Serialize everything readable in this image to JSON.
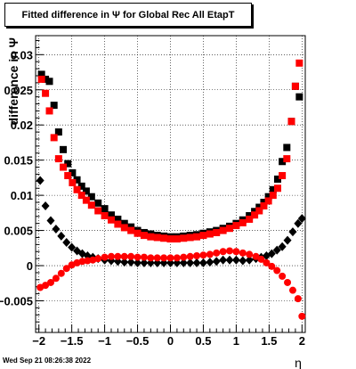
{
  "chart_data": {
    "type": "scatter",
    "title": "Fitted difference in  Ψ  for Global Rec All EtapT",
    "xlabel": "η",
    "ylabel": "difference in Ψ",
    "xlim": [
      -2.05,
      2.05
    ],
    "ylim": [
      -0.0095,
      0.0327
    ],
    "grid": true,
    "legend": "none",
    "x_ticks": [
      -2,
      -1.5,
      -1,
      -0.5,
      0,
      0.5,
      1,
      1.5,
      2
    ],
    "x_tick_labels": [
      "−2",
      "−1.5",
      "−1",
      "−0.5",
      "0",
      "0.5",
      "1",
      "1.5",
      "2"
    ],
    "y_ticks": [
      -0.005,
      0,
      0.005,
      0.01,
      0.015,
      0.02,
      0.025,
      0.03
    ],
    "y_tick_labels": [
      "−0.005",
      "0",
      "0.005",
      "0.01",
      "0.015",
      "0.02",
      "0.025",
      "0.03"
    ],
    "series": [
      {
        "color": "#000000",
        "marker": "square",
        "x": [
          -1.96,
          -1.9,
          -1.84,
          -1.77,
          -1.7,
          -1.63,
          -1.56,
          -1.49,
          -1.42,
          -1.35,
          -1.28,
          -1.2,
          -1.1,
          -1.0,
          -0.9,
          -0.8,
          -0.7,
          -0.6,
          -0.5,
          -0.4,
          -0.3,
          -0.2,
          -0.1,
          0.0,
          0.1,
          0.2,
          0.3,
          0.4,
          0.5,
          0.6,
          0.7,
          0.8,
          0.9,
          1.0,
          1.1,
          1.2,
          1.28,
          1.35,
          1.42,
          1.49,
          1.56,
          1.63,
          1.7,
          1.77,
          1.84,
          1.9,
          1.96
        ],
        "y": [
          0.0272,
          0.0265,
          0.0262,
          0.0228,
          0.019,
          0.0165,
          0.0145,
          0.0132,
          0.0122,
          0.0113,
          0.0106,
          0.0098,
          0.0089,
          0.0081,
          0.0072,
          0.0066,
          0.006,
          0.0055,
          0.005,
          0.0047,
          0.0045,
          0.0043,
          0.0042,
          0.0041,
          0.0041,
          0.0042,
          0.0043,
          0.0044,
          0.0046,
          0.0048,
          0.005,
          0.0053,
          0.0056,
          0.006,
          0.0065,
          0.0071,
          0.0077,
          0.0083,
          0.009,
          0.0098,
          0.0108,
          0.0123,
          0.0148,
          0.0168,
          0.0205,
          0.0255,
          0.024
        ]
      },
      {
        "color": "#ff0000",
        "marker": "square",
        "x": [
          -1.96,
          -1.9,
          -1.84,
          -1.77,
          -1.7,
          -1.63,
          -1.56,
          -1.49,
          -1.42,
          -1.35,
          -1.28,
          -1.2,
          -1.1,
          -1.0,
          -0.9,
          -0.8,
          -0.7,
          -0.6,
          -0.5,
          -0.4,
          -0.3,
          -0.2,
          -0.1,
          0.0,
          0.1,
          0.2,
          0.3,
          0.4,
          0.5,
          0.6,
          0.7,
          0.8,
          0.9,
          1.0,
          1.1,
          1.2,
          1.28,
          1.35,
          1.42,
          1.49,
          1.56,
          1.63,
          1.7,
          1.77,
          1.84,
          1.9,
          1.96
        ],
        "y": [
          0.0265,
          0.0245,
          0.022,
          0.0182,
          0.0152,
          0.014,
          0.0128,
          0.0118,
          0.0108,
          0.01,
          0.0093,
          0.0086,
          0.0078,
          0.0071,
          0.0065,
          0.0059,
          0.0054,
          0.005,
          0.0046,
          0.0043,
          0.0041,
          0.004,
          0.0039,
          0.0038,
          0.0038,
          0.0039,
          0.004,
          0.0041,
          0.0043,
          0.0045,
          0.0047,
          0.005,
          0.0053,
          0.0057,
          0.0061,
          0.0066,
          0.0072,
          0.0078,
          0.0085,
          0.0092,
          0.01,
          0.011,
          0.0128,
          0.0152,
          0.0205,
          0.0255,
          0.0288
        ]
      },
      {
        "color": "#000000",
        "marker": "diamond",
        "x": [
          -1.98,
          -1.9,
          -1.82,
          -1.74,
          -1.66,
          -1.58,
          -1.5,
          -1.42,
          -1.34,
          -1.26,
          -1.18,
          -1.1,
          -1.0,
          -0.9,
          -0.8,
          -0.7,
          -0.6,
          -0.5,
          -0.4,
          -0.3,
          -0.2,
          -0.1,
          0.0,
          0.1,
          0.2,
          0.3,
          0.4,
          0.5,
          0.6,
          0.7,
          0.8,
          0.9,
          1.0,
          1.1,
          1.2,
          1.3,
          1.38,
          1.46,
          1.54,
          1.62,
          1.7,
          1.78,
          1.86,
          1.94,
          2.0
        ],
        "y": [
          0.0121,
          0.0085,
          0.0064,
          0.0052,
          0.0042,
          0.0033,
          0.0026,
          0.0021,
          0.0017,
          0.0014,
          0.0012,
          0.001,
          0.0008,
          0.0007,
          0.0006,
          0.0005,
          0.0005,
          0.0004,
          0.0004,
          0.0004,
          0.0004,
          0.0004,
          0.0004,
          0.0004,
          0.0004,
          0.0004,
          0.0004,
          0.0004,
          0.0005,
          0.0006,
          0.0008,
          0.0008,
          0.0008,
          0.0007,
          0.0008,
          0.001,
          0.0012,
          0.0014,
          0.0017,
          0.0022,
          0.0027,
          0.0036,
          0.0048,
          0.006,
          0.0067
        ]
      },
      {
        "color": "#ff0000",
        "marker": "circle",
        "x": [
          -1.98,
          -1.9,
          -1.82,
          -1.74,
          -1.66,
          -1.58,
          -1.5,
          -1.42,
          -1.34,
          -1.26,
          -1.18,
          -1.1,
          -1.0,
          -0.9,
          -0.8,
          -0.7,
          -0.6,
          -0.5,
          -0.4,
          -0.3,
          -0.2,
          -0.1,
          0.0,
          0.1,
          0.2,
          0.3,
          0.4,
          0.5,
          0.6,
          0.7,
          0.8,
          0.9,
          1.0,
          1.1,
          1.2,
          1.3,
          1.38,
          1.46,
          1.54,
          1.62,
          1.7,
          1.78,
          1.86,
          1.94,
          2.0
        ],
        "y": [
          -0.0031,
          -0.0028,
          -0.0024,
          -0.0018,
          -0.0011,
          -0.0004,
          0.0001,
          0.0004,
          0.0006,
          0.0007,
          0.0008,
          0.001,
          0.0012,
          0.0013,
          0.0013,
          0.0013,
          0.0013,
          0.0012,
          0.0012,
          0.0011,
          0.0011,
          0.0011,
          0.0011,
          0.0011,
          0.0012,
          0.0013,
          0.0014,
          0.0015,
          0.0016,
          0.0018,
          0.002,
          0.0021,
          0.002,
          0.0018,
          0.0016,
          0.0013,
          0.0009,
          0.0004,
          -0.0001,
          -0.0007,
          -0.0015,
          -0.0024,
          -0.0035,
          -0.0047,
          -0.0072
        ]
      }
    ]
  },
  "footer": {
    "timestamp": "Wed Sep 21 08:26:38 2022"
  }
}
